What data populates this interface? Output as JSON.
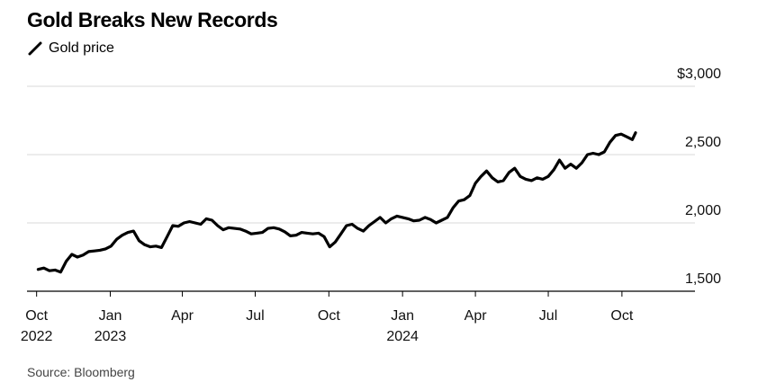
{
  "title": "Gold Breaks New Records",
  "source": "Source: Bloomberg",
  "chart_data": {
    "type": "line",
    "title": "Gold Breaks New Records",
    "legend": [
      "Gold price"
    ],
    "legend_placement": "top-left",
    "grid": true,
    "ylim": [
      1500,
      3000
    ],
    "yticks": [
      {
        "value": 3000,
        "label": "$3,000"
      },
      {
        "value": 2500,
        "label": "2,500"
      },
      {
        "value": 2000,
        "label": "2,000"
      },
      {
        "value": 1500,
        "label": "1,500"
      }
    ],
    "xlim": [
      "2022-09-28",
      "2024-11-05"
    ],
    "xticks": [
      {
        "date": "2022-10-01",
        "label": "Oct",
        "sublabel": "2022"
      },
      {
        "date": "2023-01-01",
        "label": "Jan",
        "sublabel": "2023"
      },
      {
        "date": "2023-04-01",
        "label": "Apr",
        "sublabel": ""
      },
      {
        "date": "2023-07-01",
        "label": "Jul",
        "sublabel": ""
      },
      {
        "date": "2023-10-01",
        "label": "Oct",
        "sublabel": ""
      },
      {
        "date": "2024-01-01",
        "label": "Jan",
        "sublabel": "2024"
      },
      {
        "date": "2024-04-01",
        "label": "Apr",
        "sublabel": ""
      },
      {
        "date": "2024-07-01",
        "label": "Jul",
        "sublabel": ""
      },
      {
        "date": "2024-10-01",
        "label": "Oct",
        "sublabel": ""
      }
    ],
    "series": [
      {
        "name": "Gold price",
        "color": "#000000",
        "points": [
          [
            "2022-10-03",
            1660
          ],
          [
            "2022-10-10",
            1670
          ],
          [
            "2022-10-17",
            1650
          ],
          [
            "2022-10-24",
            1655
          ],
          [
            "2022-10-31",
            1640
          ],
          [
            "2022-11-07",
            1720
          ],
          [
            "2022-11-14",
            1770
          ],
          [
            "2022-11-21",
            1750
          ],
          [
            "2022-11-28",
            1765
          ],
          [
            "2022-12-05",
            1790
          ],
          [
            "2022-12-12",
            1795
          ],
          [
            "2022-12-19",
            1800
          ],
          [
            "2022-12-26",
            1810
          ],
          [
            "2023-01-02",
            1830
          ],
          [
            "2023-01-09",
            1880
          ],
          [
            "2023-01-16",
            1910
          ],
          [
            "2023-01-23",
            1930
          ],
          [
            "2023-01-30",
            1940
          ],
          [
            "2023-02-06",
            1870
          ],
          [
            "2023-02-13",
            1840
          ],
          [
            "2023-02-20",
            1825
          ],
          [
            "2023-02-27",
            1830
          ],
          [
            "2023-03-06",
            1820
          ],
          [
            "2023-03-13",
            1900
          ],
          [
            "2023-03-20",
            1980
          ],
          [
            "2023-03-27",
            1975
          ],
          [
            "2023-04-03",
            2000
          ],
          [
            "2023-04-10",
            2010
          ],
          [
            "2023-04-17",
            2000
          ],
          [
            "2023-04-24",
            1990
          ],
          [
            "2023-05-01",
            2030
          ],
          [
            "2023-05-08",
            2020
          ],
          [
            "2023-05-15",
            1980
          ],
          [
            "2023-05-22",
            1950
          ],
          [
            "2023-05-29",
            1965
          ],
          [
            "2023-06-05",
            1960
          ],
          [
            "2023-06-12",
            1955
          ],
          [
            "2023-06-19",
            1940
          ],
          [
            "2023-06-26",
            1920
          ],
          [
            "2023-07-03",
            1925
          ],
          [
            "2023-07-10",
            1930
          ],
          [
            "2023-07-17",
            1960
          ],
          [
            "2023-07-24",
            1965
          ],
          [
            "2023-07-31",
            1955
          ],
          [
            "2023-08-07",
            1935
          ],
          [
            "2023-08-14",
            1905
          ],
          [
            "2023-08-21",
            1910
          ],
          [
            "2023-08-28",
            1930
          ],
          [
            "2023-09-04",
            1925
          ],
          [
            "2023-09-11",
            1920
          ],
          [
            "2023-09-18",
            1925
          ],
          [
            "2023-09-25",
            1900
          ],
          [
            "2023-10-02",
            1825
          ],
          [
            "2023-10-09",
            1860
          ],
          [
            "2023-10-16",
            1920
          ],
          [
            "2023-10-23",
            1980
          ],
          [
            "2023-10-30",
            1990
          ],
          [
            "2023-11-06",
            1960
          ],
          [
            "2023-11-13",
            1940
          ],
          [
            "2023-11-20",
            1980
          ],
          [
            "2023-11-27",
            2010
          ],
          [
            "2023-12-04",
            2040
          ],
          [
            "2023-12-11",
            2000
          ],
          [
            "2023-12-18",
            2030
          ],
          [
            "2023-12-25",
            2050
          ],
          [
            "2024-01-01",
            2040
          ],
          [
            "2024-01-08",
            2030
          ],
          [
            "2024-01-15",
            2015
          ],
          [
            "2024-01-22",
            2020
          ],
          [
            "2024-01-29",
            2040
          ],
          [
            "2024-02-05",
            2025
          ],
          [
            "2024-02-12",
            2000
          ],
          [
            "2024-02-19",
            2020
          ],
          [
            "2024-02-26",
            2040
          ],
          [
            "2024-03-04",
            2110
          ],
          [
            "2024-03-11",
            2160
          ],
          [
            "2024-03-18",
            2170
          ],
          [
            "2024-03-25",
            2200
          ],
          [
            "2024-04-01",
            2290
          ],
          [
            "2024-04-08",
            2340
          ],
          [
            "2024-04-15",
            2380
          ],
          [
            "2024-04-22",
            2330
          ],
          [
            "2024-04-29",
            2300
          ],
          [
            "2024-05-06",
            2310
          ],
          [
            "2024-05-13",
            2370
          ],
          [
            "2024-05-20",
            2400
          ],
          [
            "2024-05-27",
            2340
          ],
          [
            "2024-06-03",
            2320
          ],
          [
            "2024-06-10",
            2310
          ],
          [
            "2024-06-17",
            2330
          ],
          [
            "2024-06-24",
            2320
          ],
          [
            "2024-07-01",
            2340
          ],
          [
            "2024-07-08",
            2390
          ],
          [
            "2024-07-15",
            2460
          ],
          [
            "2024-07-22",
            2400
          ],
          [
            "2024-07-29",
            2430
          ],
          [
            "2024-08-05",
            2400
          ],
          [
            "2024-08-12",
            2440
          ],
          [
            "2024-08-19",
            2500
          ],
          [
            "2024-08-26",
            2510
          ],
          [
            "2024-09-02",
            2500
          ],
          [
            "2024-09-09",
            2520
          ],
          [
            "2024-09-16",
            2590
          ],
          [
            "2024-09-23",
            2640
          ],
          [
            "2024-09-30",
            2650
          ],
          [
            "2024-10-07",
            2630
          ],
          [
            "2024-10-14",
            2610
          ],
          [
            "2024-10-18",
            2660
          ]
        ]
      }
    ]
  }
}
